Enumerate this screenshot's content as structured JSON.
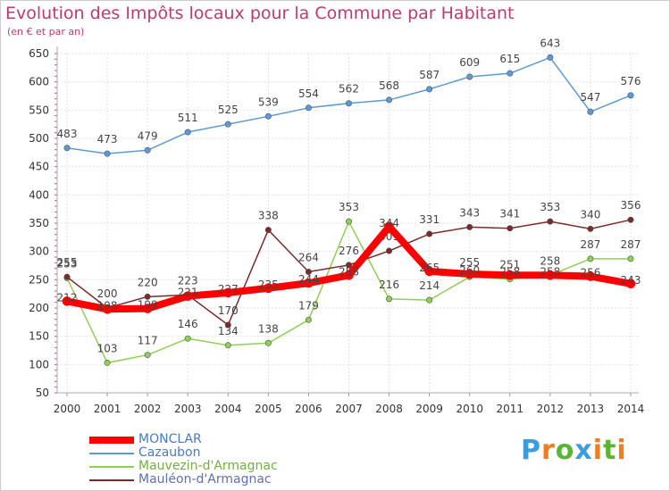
{
  "header": {
    "title": "Evolution des Impôts locaux pour la Commune par Habitant",
    "subtitle": "(en € et par an)"
  },
  "brand": {
    "name": "Proxiti",
    "letters": [
      {
        "char": "P",
        "color": "#3a9de0"
      },
      {
        "char": "r",
        "color": "#f07d1e"
      },
      {
        "char": "o",
        "color": "#5ab535"
      },
      {
        "char": "x",
        "color": "#3a9de0"
      },
      {
        "char": "i",
        "color": "#f07d1e"
      },
      {
        "char": "t",
        "color": "#5ab535"
      },
      {
        "char": "i",
        "color": "#f07d1e"
      }
    ]
  },
  "chart_data": {
    "type": "line",
    "title": "Evolution des Impôts locaux pour la Commune par Habitant",
    "subtitle": "(en € et par an)",
    "xlabel": "",
    "ylabel": "",
    "x": [
      "2000",
      "2001",
      "2002",
      "2003",
      "2004",
      "2005",
      "2006",
      "2007",
      "2008",
      "2009",
      "2010",
      "2011",
      "2012",
      "2013",
      "2014"
    ],
    "yticks": [
      "50",
      "100",
      "150",
      "200",
      "250",
      "300",
      "350",
      "400",
      "450",
      "500",
      "550",
      "600",
      "650"
    ],
    "ylim": [
      50,
      650
    ],
    "grid": true,
    "legend_position": "bottom-left",
    "series": [
      {
        "name": "MONCLAR",
        "color": "#ff0000",
        "values": [
          212,
          198,
          199,
          221,
          227,
          235,
          244,
          258,
          344,
          265,
          260,
          258,
          258,
          256,
          243
        ],
        "labels": [
          "212",
          "198",
          "199",
          "221",
          "227",
          "235",
          "244",
          "258",
          "344",
          "265",
          "260",
          "258",
          "258",
          "256",
          "243"
        ]
      },
      {
        "name": "Cazaubon",
        "color": "#5b9bd5",
        "values": [
          483,
          473,
          479,
          511,
          525,
          539,
          554,
          562,
          568,
          587,
          609,
          615,
          643,
          547,
          576
        ],
        "labels": [
          "483",
          "473",
          "479",
          "511",
          "525",
          "539",
          "554",
          "562",
          "568",
          "587",
          "609",
          "615",
          "643",
          "547",
          "576"
        ]
      },
      {
        "name": "Mauvezin-d'Armagnac",
        "color": "#8ed055",
        "values": [
          253,
          103,
          117,
          146,
          134,
          138,
          179,
          353,
          216,
          214,
          255,
          251,
          258,
          287,
          287
        ],
        "labels": [
          "253",
          "103",
          "117",
          "146",
          "134",
          "138",
          "179",
          "353",
          "216",
          "214",
          "255",
          "251",
          "258",
          "287",
          "287"
        ]
      },
      {
        "name": "Mauléon-d'Armagnac",
        "color": "#7a2a2a",
        "values": [
          255,
          200,
          220,
          223,
          170,
          338,
          264,
          276,
          301,
          331,
          343,
          341,
          353,
          340,
          356
        ],
        "labels": [
          "255",
          "200",
          "220",
          "223",
          "170",
          "338",
          "264",
          "276",
          "301",
          "331",
          "343",
          "341",
          "353",
          "340",
          "356"
        ]
      }
    ]
  }
}
